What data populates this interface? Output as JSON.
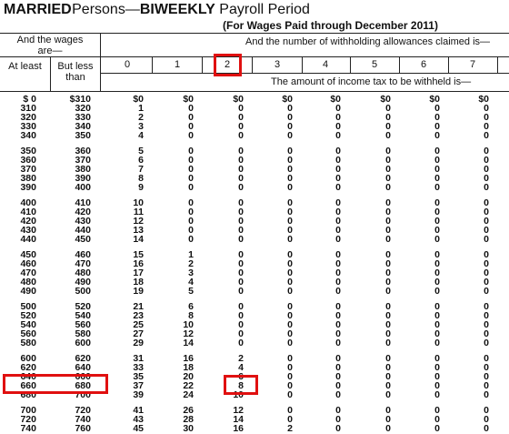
{
  "title": {
    "bold1": "MARRIED",
    "text1": "Persons—",
    "bold2": "BIWEEKLY",
    "text2": "Payroll Period"
  },
  "subtitle": "(For Wages Paid through December 2011)",
  "header": {
    "wages": "And the wages are—",
    "allowances": "And the number of withholding allowances claimed is—",
    "at_least": "At least",
    "but_less": "But less than",
    "columns": [
      "0",
      "1",
      "2",
      "3",
      "4",
      "5",
      "6",
      "7"
    ],
    "amount": "The amount of income tax to be withheld is—"
  },
  "table": {
    "rows": [
      [
        "$ 0",
        "$310",
        "$0",
        "$0",
        "$0",
        "$0",
        "$0",
        "$0",
        "$0",
        "$0"
      ],
      [
        "310",
        "320",
        "1",
        "0",
        "0",
        "0",
        "0",
        "0",
        "0",
        "0"
      ],
      [
        "320",
        "330",
        "2",
        "0",
        "0",
        "0",
        "0",
        "0",
        "0",
        "0"
      ],
      [
        "330",
        "340",
        "3",
        "0",
        "0",
        "0",
        "0",
        "0",
        "0",
        "0"
      ],
      [
        "340",
        "350",
        "4",
        "0",
        "0",
        "0",
        "0",
        "0",
        "0",
        "0"
      ],
      [
        "350",
        "360",
        "5",
        "0",
        "0",
        "0",
        "0",
        "0",
        "0",
        "0"
      ],
      [
        "360",
        "370",
        "6",
        "0",
        "0",
        "0",
        "0",
        "0",
        "0",
        "0"
      ],
      [
        "370",
        "380",
        "7",
        "0",
        "0",
        "0",
        "0",
        "0",
        "0",
        "0"
      ],
      [
        "380",
        "390",
        "8",
        "0",
        "0",
        "0",
        "0",
        "0",
        "0",
        "0"
      ],
      [
        "390",
        "400",
        "9",
        "0",
        "0",
        "0",
        "0",
        "0",
        "0",
        "0"
      ],
      [
        "400",
        "410",
        "10",
        "0",
        "0",
        "0",
        "0",
        "0",
        "0",
        "0"
      ],
      [
        "410",
        "420",
        "11",
        "0",
        "0",
        "0",
        "0",
        "0",
        "0",
        "0"
      ],
      [
        "420",
        "430",
        "12",
        "0",
        "0",
        "0",
        "0",
        "0",
        "0",
        "0"
      ],
      [
        "430",
        "440",
        "13",
        "0",
        "0",
        "0",
        "0",
        "0",
        "0",
        "0"
      ],
      [
        "440",
        "450",
        "14",
        "0",
        "0",
        "0",
        "0",
        "0",
        "0",
        "0"
      ],
      [
        "450",
        "460",
        "15",
        "1",
        "0",
        "0",
        "0",
        "0",
        "0",
        "0"
      ],
      [
        "460",
        "470",
        "16",
        "2",
        "0",
        "0",
        "0",
        "0",
        "0",
        "0"
      ],
      [
        "470",
        "480",
        "17",
        "3",
        "0",
        "0",
        "0",
        "0",
        "0",
        "0"
      ],
      [
        "480",
        "490",
        "18",
        "4",
        "0",
        "0",
        "0",
        "0",
        "0",
        "0"
      ],
      [
        "490",
        "500",
        "19",
        "5",
        "0",
        "0",
        "0",
        "0",
        "0",
        "0"
      ],
      [
        "500",
        "520",
        "21",
        "6",
        "0",
        "0",
        "0",
        "0",
        "0",
        "0"
      ],
      [
        "520",
        "540",
        "23",
        "8",
        "0",
        "0",
        "0",
        "0",
        "0",
        "0"
      ],
      [
        "540",
        "560",
        "25",
        "10",
        "0",
        "0",
        "0",
        "0",
        "0",
        "0"
      ],
      [
        "560",
        "580",
        "27",
        "12",
        "0",
        "0",
        "0",
        "0",
        "0",
        "0"
      ],
      [
        "580",
        "600",
        "29",
        "14",
        "0",
        "0",
        "0",
        "0",
        "0",
        "0"
      ],
      [
        "600",
        "620",
        "31",
        "16",
        "2",
        "0",
        "0",
        "0",
        "0",
        "0"
      ],
      [
        "620",
        "640",
        "33",
        "18",
        "4",
        "0",
        "0",
        "0",
        "0",
        "0"
      ],
      [
        "640",
        "660",
        "35",
        "20",
        "6",
        "0",
        "0",
        "0",
        "0",
        "0"
      ],
      [
        "660",
        "680",
        "37",
        "22",
        "8",
        "0",
        "0",
        "0",
        "0",
        "0"
      ],
      [
        "680",
        "700",
        "39",
        "24",
        "10",
        "0",
        "0",
        "0",
        "0",
        "0"
      ],
      [
        "700",
        "720",
        "41",
        "26",
        "12",
        "0",
        "0",
        "0",
        "0",
        "0"
      ],
      [
        "720",
        "740",
        "43",
        "28",
        "14",
        "0",
        "0",
        "0",
        "0",
        "0"
      ],
      [
        "740",
        "760",
        "45",
        "30",
        "16",
        "2",
        "0",
        "0",
        "0",
        "0"
      ]
    ]
  }
}
